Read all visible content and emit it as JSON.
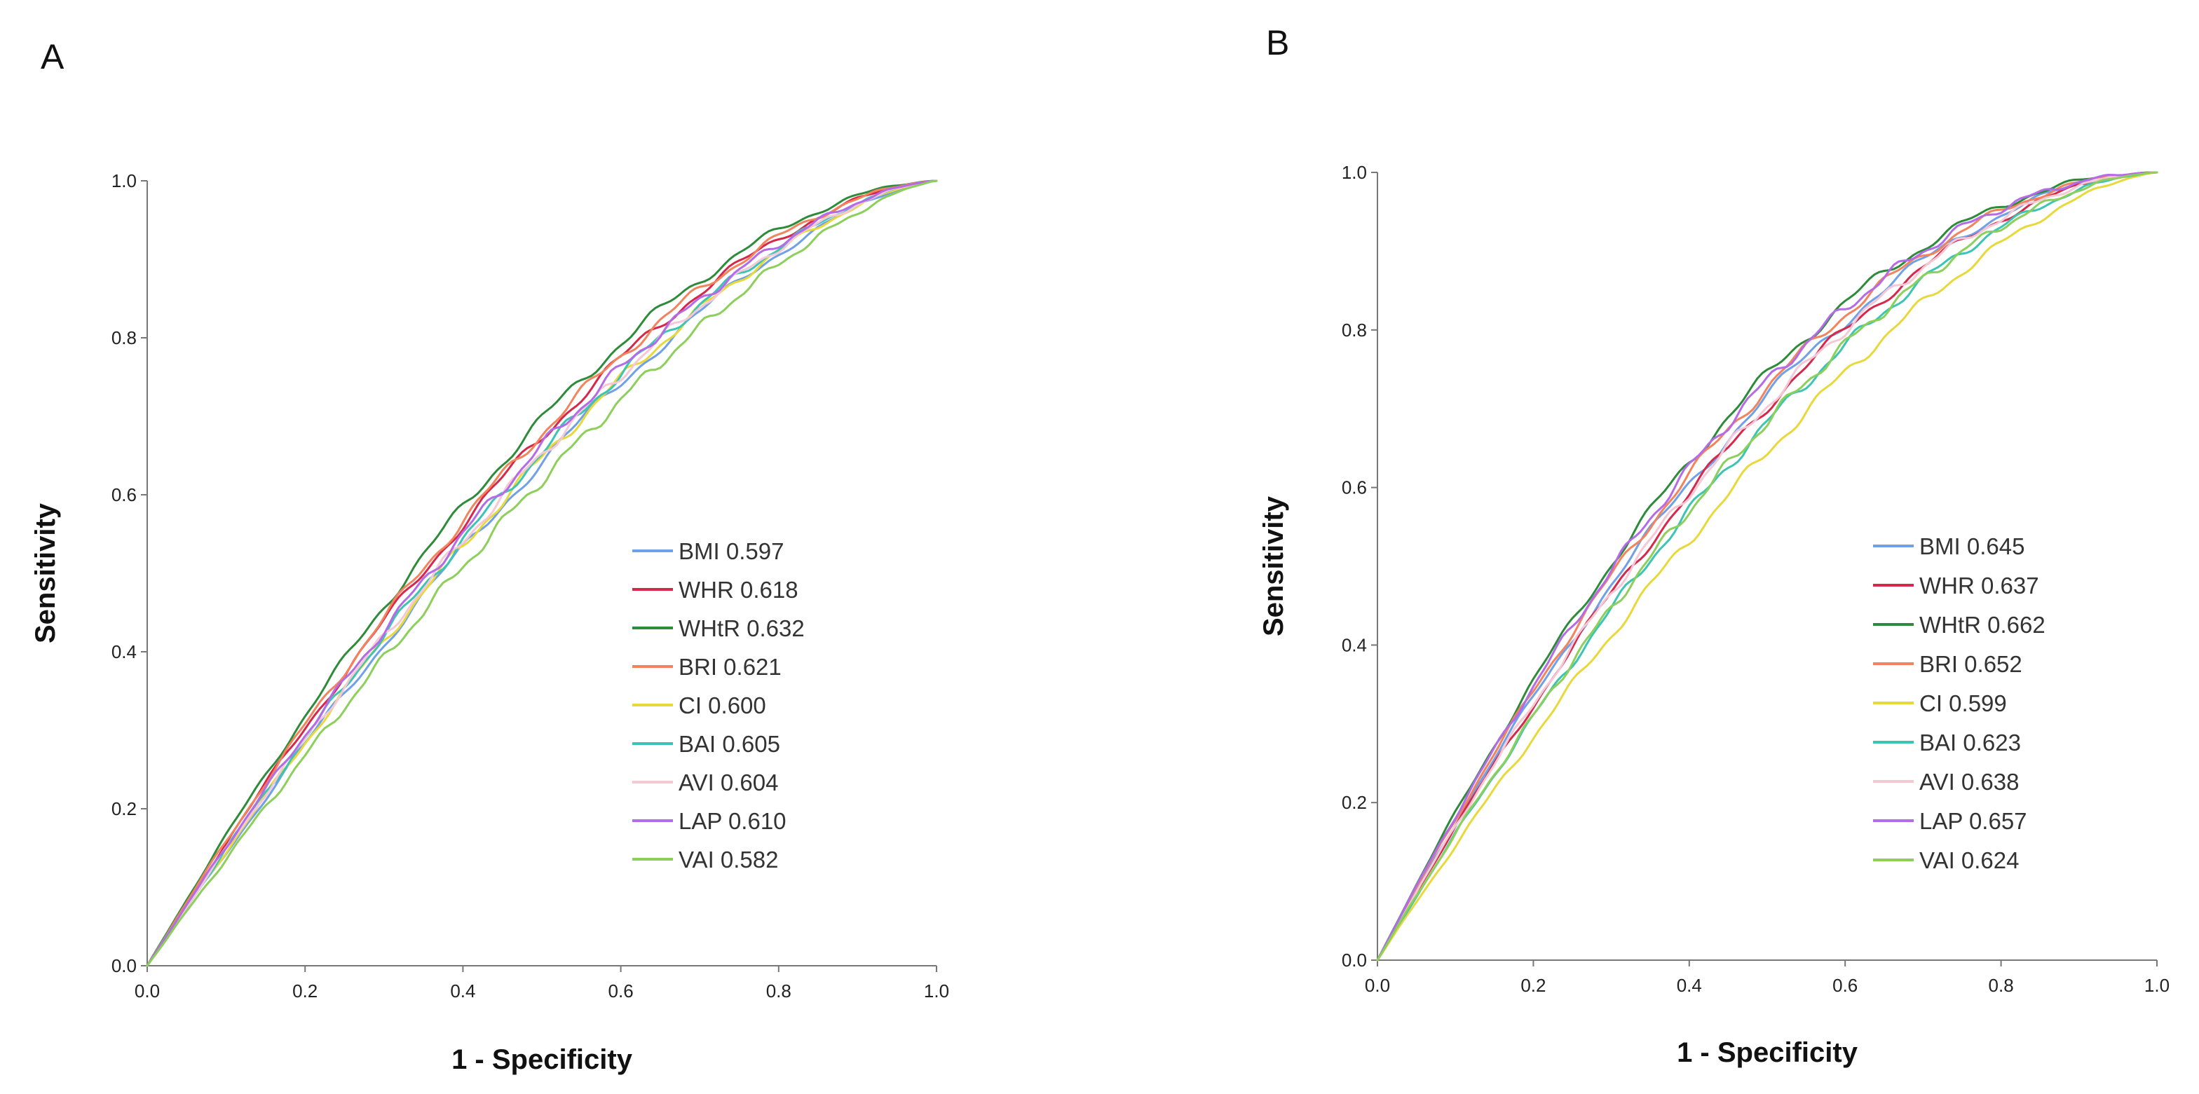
{
  "chart_data": [
    {
      "panel": "A",
      "type": "line",
      "xlabel": "1 - Specificity",
      "ylabel": "Sensitivity",
      "xlim": [
        0.0,
        1.0
      ],
      "ylim": [
        0.0,
        1.0
      ],
      "ticks": [
        "0.0",
        "0.2",
        "0.4",
        "0.6",
        "0.8",
        "1.0"
      ],
      "legend_position": "center-right",
      "series": [
        {
          "name": "BMI 0.597",
          "auc": 0.597,
          "color": "#6fa0e8"
        },
        {
          "name": "WHR 0.618",
          "auc": 0.618,
          "color": "#d6284a"
        },
        {
          "name": "WHtR 0.632",
          "auc": 0.632,
          "color": "#2e8b3a"
        },
        {
          "name": "BRI 0.621",
          "auc": 0.621,
          "color": "#f2835c"
        },
        {
          "name": "CI 0.600",
          "auc": 0.6,
          "color": "#e8d93a"
        },
        {
          "name": "BAI 0.605",
          "auc": 0.605,
          "color": "#3cc4b4"
        },
        {
          "name": "AVI 0.604",
          "auc": 0.604,
          "color": "#f5c8d6"
        },
        {
          "name": "LAP 0.610",
          "auc": 0.61,
          "color": "#b46be8"
        },
        {
          "name": "VAI 0.582",
          "auc": 0.582,
          "color": "#8ccf5a"
        }
      ]
    },
    {
      "panel": "B",
      "type": "line",
      "xlabel": "1 - Specificity",
      "ylabel": "Sensitivity",
      "xlim": [
        0.0,
        1.0
      ],
      "ylim": [
        0.0,
        1.0
      ],
      "ticks": [
        "0.0",
        "0.2",
        "0.4",
        "0.6",
        "0.8",
        "1.0"
      ],
      "legend_position": "center-right",
      "series": [
        {
          "name": "BMI 0.645",
          "auc": 0.645,
          "color": "#6fa0e8"
        },
        {
          "name": "WHR 0.637",
          "auc": 0.637,
          "color": "#d6284a"
        },
        {
          "name": "WHtR 0.662",
          "auc": 0.662,
          "color": "#2e8b3a"
        },
        {
          "name": "BRI 0.652",
          "auc": 0.652,
          "color": "#f2835c"
        },
        {
          "name": "CI 0.599",
          "auc": 0.599,
          "color": "#e8d93a"
        },
        {
          "name": "BAI 0.623",
          "auc": 0.623,
          "color": "#3cc4b4"
        },
        {
          "name": "AVI 0.638",
          "auc": 0.638,
          "color": "#f5c8d6"
        },
        {
          "name": "LAP 0.657",
          "auc": 0.657,
          "color": "#b46be8"
        },
        {
          "name": "VAI 0.624",
          "auc": 0.624,
          "color": "#8ccf5a"
        }
      ]
    }
  ]
}
